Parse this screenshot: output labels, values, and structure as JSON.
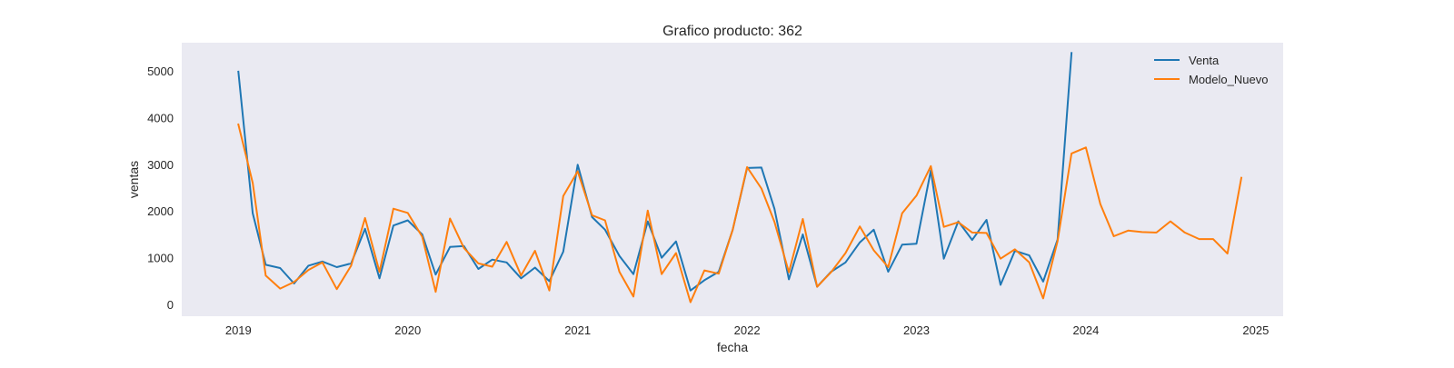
{
  "chart_data": {
    "type": "line",
    "title": "Grafico producto: 362",
    "xlabel": "fecha",
    "ylabel": "ventas",
    "xlim": [
      "2018-09-01",
      "2025-03-01"
    ],
    "ylim": [
      -250,
      5600
    ],
    "yticks": [
      0,
      1000,
      2000,
      3000,
      4000,
      5000
    ],
    "xticks": [
      "2019",
      "2020",
      "2021",
      "2022",
      "2023",
      "2024",
      "2025"
    ],
    "grid": false,
    "legend_position": "top-right",
    "background_color": "#eaeaf2",
    "series": [
      {
        "name": "Venta",
        "color": "#1f77b4",
        "x": [
          "2019-01-01",
          "2019-02-01",
          "2019-03-01",
          "2019-04-01",
          "2019-05-01",
          "2019-06-01",
          "2019-07-01",
          "2019-08-01",
          "2019-09-01",
          "2019-10-01",
          "2019-11-01",
          "2019-12-01",
          "2020-01-01",
          "2020-02-01",
          "2020-03-01",
          "2020-04-01",
          "2020-05-01",
          "2020-06-01",
          "2020-07-01",
          "2020-08-01",
          "2020-09-01",
          "2020-10-01",
          "2020-11-01",
          "2020-12-01",
          "2021-01-01",
          "2021-02-01",
          "2021-03-01",
          "2021-04-01",
          "2021-05-01",
          "2021-06-01",
          "2021-07-01",
          "2021-08-01",
          "2021-09-01",
          "2021-10-01",
          "2021-11-01",
          "2021-12-01",
          "2022-01-01",
          "2022-02-01",
          "2022-03-01",
          "2022-04-01",
          "2022-05-01",
          "2022-06-01",
          "2022-07-01",
          "2022-08-01",
          "2022-09-01",
          "2022-10-01",
          "2022-11-01",
          "2022-12-01",
          "2023-01-01",
          "2023-02-01",
          "2023-03-01",
          "2023-04-01",
          "2023-05-01",
          "2023-06-01",
          "2023-07-01",
          "2023-08-01",
          "2023-09-01",
          "2023-10-01",
          "2023-11-01",
          "2023-12-01"
        ],
        "values": [
          4980,
          1950,
          850,
          780,
          450,
          830,
          920,
          800,
          880,
          1620,
          560,
          1690,
          1800,
          1500,
          640,
          1230,
          1250,
          760,
          960,
          900,
          560,
          790,
          500,
          1130,
          2990,
          1870,
          1600,
          1040,
          650,
          1780,
          1000,
          1350,
          300,
          520,
          700,
          1600,
          2920,
          2930,
          2050,
          540,
          1500,
          380,
          700,
          900,
          1330,
          1600,
          700,
          1280,
          1300,
          2870,
          980,
          1780,
          1380,
          1810,
          420,
          1150,
          1050,
          490,
          1390,
          5380
        ]
      },
      {
        "name": "Modelo_Nuevo",
        "color": "#ff7f0e",
        "x": [
          "2019-01-01",
          "2019-02-01",
          "2019-03-01",
          "2019-04-01",
          "2019-05-01",
          "2019-06-01",
          "2019-07-01",
          "2019-08-01",
          "2019-09-01",
          "2019-10-01",
          "2019-11-01",
          "2019-12-01",
          "2020-01-01",
          "2020-02-01",
          "2020-03-01",
          "2020-04-01",
          "2020-05-01",
          "2020-06-01",
          "2020-07-01",
          "2020-08-01",
          "2020-09-01",
          "2020-10-01",
          "2020-11-01",
          "2020-12-01",
          "2021-01-01",
          "2021-02-01",
          "2021-03-01",
          "2021-04-01",
          "2021-05-01",
          "2021-06-01",
          "2021-07-01",
          "2021-08-01",
          "2021-09-01",
          "2021-10-01",
          "2021-11-01",
          "2021-12-01",
          "2022-01-01",
          "2022-02-01",
          "2022-03-01",
          "2022-04-01",
          "2022-05-01",
          "2022-06-01",
          "2022-07-01",
          "2022-08-01",
          "2022-09-01",
          "2022-10-01",
          "2022-11-01",
          "2022-12-01",
          "2023-01-01",
          "2023-02-01",
          "2023-03-01",
          "2023-04-01",
          "2023-05-01",
          "2023-06-01",
          "2023-07-01",
          "2023-08-01",
          "2023-09-01",
          "2023-10-01",
          "2023-11-01",
          "2023-12-01",
          "2024-01-01",
          "2024-02-01",
          "2024-03-01",
          "2024-04-01",
          "2024-05-01",
          "2024-06-01",
          "2024-07-01",
          "2024-08-01",
          "2024-09-01",
          "2024-10-01",
          "2024-11-01",
          "2024-12-01"
        ],
        "values": [
          3850,
          2600,
          620,
          340,
          480,
          740,
          900,
          330,
          830,
          1850,
          700,
          2050,
          1960,
          1450,
          270,
          1840,
          1210,
          880,
          810,
          1340,
          620,
          1150,
          300,
          2320,
          2850,
          1910,
          1800,
          700,
          170,
          2010,
          650,
          1100,
          50,
          730,
          660,
          1600,
          2940,
          2480,
          1770,
          690,
          1830,
          380,
          690,
          1100,
          1670,
          1160,
          800,
          1950,
          2330,
          2960,
          1660,
          1760,
          1540,
          1530,
          980,
          1180,
          900,
          130,
          1360,
          3230,
          3360,
          2150,
          1460,
          1580,
          1550,
          1540,
          1780,
          1540,
          1400,
          1400,
          1090,
          2710
        ]
      }
    ]
  }
}
